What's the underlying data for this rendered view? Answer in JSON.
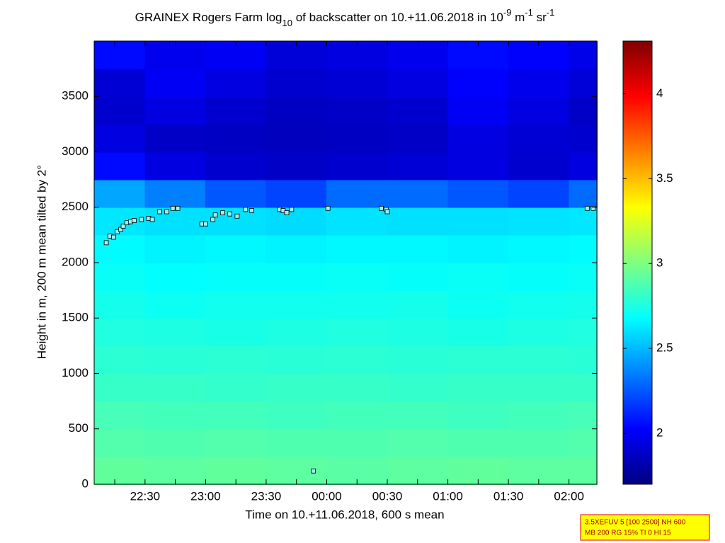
{
  "chart_data": {
    "type": "heatmap",
    "title_parts": [
      "GRAINEX Rogers Farm log",
      "10",
      " of backscatter on 10.+11.06.2018 in 10",
      "-9",
      " m",
      "-1",
      " sr",
      "-1"
    ],
    "title_shift": [
      "base",
      "sub",
      "base",
      "super",
      "base",
      "super",
      "base",
      "super"
    ],
    "xlabel": "Time on 10.+11.06.2018, 600 s mean",
    "ylabel": "Height in m, 200 m mean tilted by 2°",
    "xlim": [
      22.08,
      26.23
    ],
    "ylim": [
      0,
      4000
    ],
    "xticks": [
      {
        "value": 22.5,
        "label": "22:30"
      },
      {
        "value": 23,
        "label": "23:00"
      },
      {
        "value": 23.5,
        "label": "23:30"
      },
      {
        "value": 24,
        "label": "00:00"
      },
      {
        "value": 24.5,
        "label": "00:30"
      },
      {
        "value": 25,
        "label": "01:00"
      },
      {
        "value": 25.5,
        "label": "01:30"
      },
      {
        "value": 26,
        "label": "02:00"
      }
    ],
    "xminorticks": [
      22.25,
      22.75,
      23.25,
      23.75,
      24.25,
      24.75,
      25.25,
      25.75
    ],
    "yticks": [
      0,
      500,
      1000,
      1500,
      2000,
      2500,
      3000,
      3500
    ],
    "colormap": "jet",
    "clim": [
      1.7,
      4.31
    ],
    "cticks": [
      2,
      2.5,
      3,
      3.5,
      4
    ],
    "x_edges": [
      22.08,
      22.5,
      23,
      23.5,
      24,
      24.5,
      25,
      25.5,
      26,
      26.23
    ],
    "y_edges": [
      0,
      250,
      500,
      750,
      1000,
      1250,
      1500,
      1750,
      2000,
      2250,
      2500,
      2750,
      3000,
      3250,
      3500,
      3750,
      4000
    ],
    "z": [
      [
        2.93,
        2.92,
        2.93,
        2.92,
        2.91,
        2.92,
        2.93,
        2.92,
        2.92
      ],
      [
        2.89,
        2.88,
        2.89,
        2.88,
        2.88,
        2.89,
        2.88,
        2.88,
        2.89
      ],
      [
        2.86,
        2.85,
        2.85,
        2.84,
        2.85,
        2.85,
        2.84,
        2.85,
        2.86
      ],
      [
        2.82,
        2.82,
        2.81,
        2.82,
        2.82,
        2.81,
        2.82,
        2.82,
        2.82
      ],
      [
        2.79,
        2.78,
        2.79,
        2.78,
        2.79,
        2.78,
        2.79,
        2.79,
        2.78
      ],
      [
        2.76,
        2.75,
        2.74,
        2.75,
        2.76,
        2.75,
        2.74,
        2.75,
        2.76
      ],
      [
        2.73,
        2.71,
        2.72,
        2.72,
        2.72,
        2.73,
        2.71,
        2.72,
        2.73
      ],
      [
        2.7,
        2.68,
        2.69,
        2.69,
        2.7,
        2.69,
        2.7,
        2.69,
        2.7
      ],
      [
        2.67,
        2.65,
        2.66,
        2.65,
        2.66,
        2.66,
        2.65,
        2.66,
        2.67
      ],
      [
        2.62,
        2.6,
        2.6,
        2.59,
        2.61,
        2.6,
        2.6,
        2.61,
        2.62
      ],
      [
        2.45,
        2.35,
        2.25,
        2.2,
        2.3,
        2.3,
        2.25,
        2.2,
        2.3
      ],
      [
        2.05,
        1.95,
        1.9,
        1.88,
        1.9,
        1.92,
        1.95,
        1.9,
        1.95
      ],
      [
        1.95,
        1.88,
        1.87,
        1.86,
        1.87,
        1.88,
        1.95,
        1.92,
        1.9
      ],
      [
        1.9,
        1.95,
        1.9,
        1.87,
        1.88,
        1.9,
        2.0,
        1.95,
        1.88
      ],
      [
        1.92,
        2.0,
        1.95,
        1.9,
        1.92,
        1.95,
        2.02,
        1.98,
        1.93
      ],
      [
        2.05,
        1.98,
        2.0,
        1.93,
        1.95,
        1.98,
        2.05,
        2.02,
        1.97
      ]
    ],
    "markers": {
      "color": "#9ff0ee",
      "x": [
        22.18,
        22.21,
        22.24,
        22.27,
        22.3,
        22.32,
        22.35,
        22.38,
        22.41,
        22.47,
        22.53,
        22.56,
        22.62,
        22.68,
        22.73,
        22.77,
        22.97,
        23.0,
        23.06,
        23.08,
        23.14,
        23.2,
        23.26,
        23.33,
        23.38,
        23.61,
        23.64,
        23.67,
        23.71,
        23.89,
        24.01,
        24.45,
        24.49,
        24.5,
        26.15,
        26.2
      ],
      "y": [
        2180,
        2240,
        2230,
        2280,
        2300,
        2330,
        2360,
        2370,
        2380,
        2390,
        2400,
        2390,
        2460,
        2460,
        2490,
        2490,
        2350,
        2350,
        2390,
        2430,
        2450,
        2440,
        2420,
        2480,
        2470,
        2480,
        2470,
        2450,
        2480,
        120,
        2490,
        2490,
        2480,
        2460,
        2490,
        2490
      ]
    },
    "annotation_lines": [
      "3.5XEFUV 5 [100 2500] NH 600",
      "MB 200 RG 15% TI 0 HI 15"
    ]
  }
}
